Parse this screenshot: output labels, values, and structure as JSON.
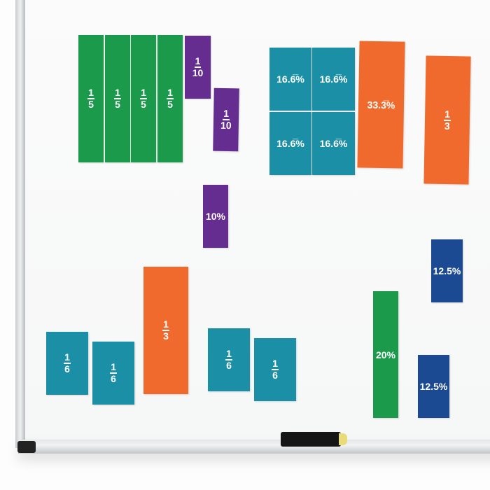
{
  "colors": {
    "green": "#1b9a4c",
    "purple": "#662d91",
    "teal": "#1b8fa6",
    "orange": "#ef6a2c",
    "navy": "#1c4a92"
  },
  "tiles": [
    {
      "color": "green",
      "num": "1",
      "den": "5"
    },
    {
      "color": "green",
      "num": "1",
      "den": "5"
    },
    {
      "color": "green",
      "num": "1",
      "den": "5"
    },
    {
      "color": "green",
      "num": "1",
      "den": "5"
    },
    {
      "color": "purple",
      "num": "1",
      "den": "10"
    },
    {
      "color": "purple",
      "num": "1",
      "den": "10"
    },
    {
      "color": "purple",
      "text": "10%"
    },
    {
      "color": "teal",
      "text": "16.6̅%"
    },
    {
      "color": "teal",
      "text": "16.6̅%"
    },
    {
      "color": "teal",
      "text": "16.6̅%"
    },
    {
      "color": "teal",
      "text": "16.6̅%"
    },
    {
      "color": "orange",
      "text": "33.3̅%"
    },
    {
      "color": "orange",
      "num": "1",
      "den": "3"
    },
    {
      "color": "navy",
      "text": "12.5%"
    },
    {
      "color": "green",
      "text": "20%"
    },
    {
      "color": "navy",
      "text": "12.5%"
    },
    {
      "color": "teal",
      "num": "1",
      "den": "6"
    },
    {
      "color": "teal",
      "num": "1",
      "den": "6"
    },
    {
      "color": "orange",
      "num": "1",
      "den": "3"
    },
    {
      "color": "teal",
      "num": "1",
      "den": "6"
    },
    {
      "color": "teal",
      "num": "1",
      "den": "6"
    }
  ]
}
